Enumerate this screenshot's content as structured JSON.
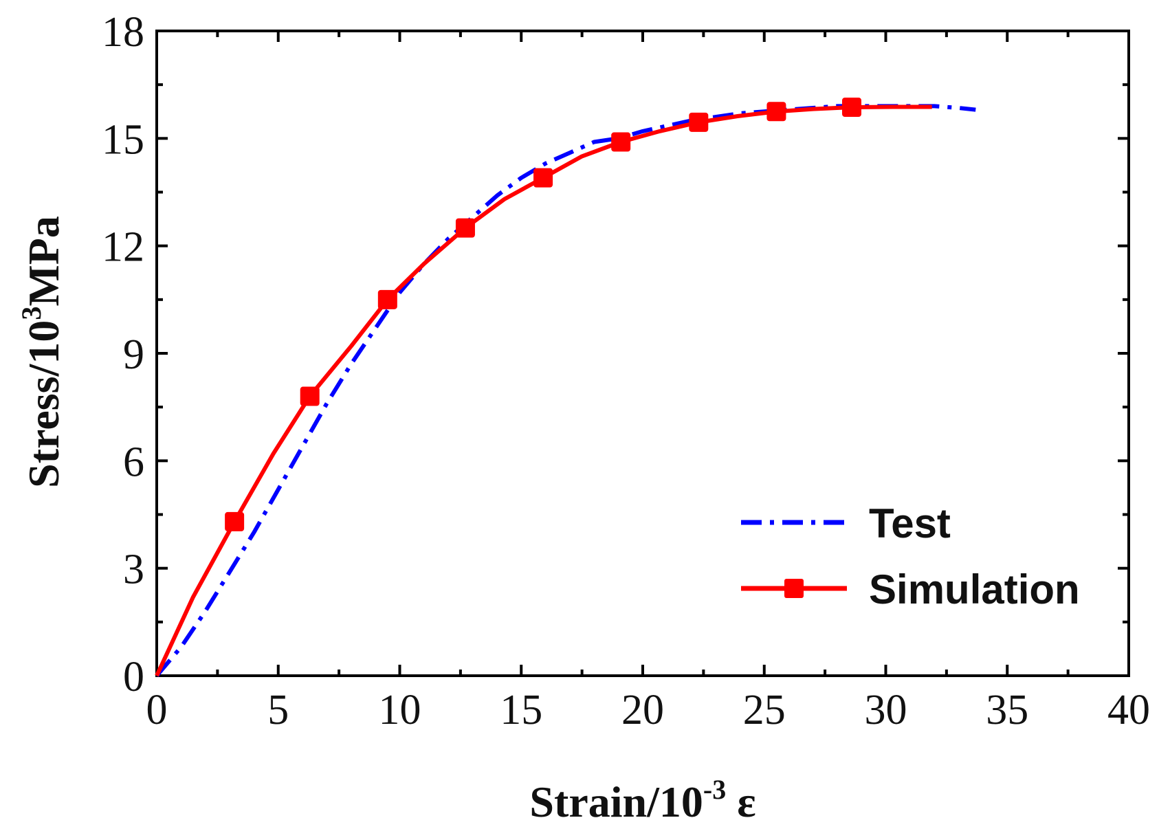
{
  "chart_data": {
    "type": "line",
    "title": "",
    "xlabel": {
      "main": "Strain/10",
      "sup": "-3",
      "unit": " ε"
    },
    "ylabel": {
      "main": "Stress/10",
      "sup": "3",
      "unit": "MPa"
    },
    "xlim": [
      0,
      40
    ],
    "ylim": [
      0,
      18
    ],
    "xticks": [
      0,
      5,
      10,
      15,
      20,
      25,
      30,
      35,
      40
    ],
    "yticks": [
      0,
      3,
      6,
      9,
      12,
      15,
      18
    ],
    "xticks_labels": [
      "0",
      "5",
      "10",
      "15",
      "20",
      "25",
      "30",
      "35",
      "40"
    ],
    "yticks_labels": [
      "0",
      "3",
      "6",
      "9",
      "12",
      "15",
      "18"
    ],
    "grid": false,
    "legend_position": "bottom-right",
    "series": [
      {
        "name": "Test",
        "color": "#0000ff",
        "style": "dash-dot",
        "x": [
          0,
          1,
          2,
          3,
          4,
          5,
          6,
          7,
          8,
          9,
          10,
          11,
          12,
          13,
          14,
          15,
          16,
          17,
          18,
          19,
          20,
          21,
          22,
          23,
          24,
          25,
          26,
          27,
          28,
          29,
          30,
          31,
          32,
          33,
          33.7
        ],
        "y": [
          0,
          0.8,
          1.8,
          2.9,
          4.0,
          5.2,
          6.4,
          7.6,
          8.7,
          9.7,
          10.7,
          11.5,
          12.2,
          12.8,
          13.4,
          13.9,
          14.3,
          14.6,
          14.9,
          15.0,
          15.2,
          15.35,
          15.5,
          15.6,
          15.7,
          15.75,
          15.8,
          15.85,
          15.9,
          15.9,
          15.9,
          15.9,
          15.9,
          15.85,
          15.8
        ]
      },
      {
        "name": "Simulation",
        "color": "#ff0000",
        "style": "solid",
        "marker": "square",
        "x": [
          0,
          1.5,
          3.2,
          4.8,
          6.3,
          8.0,
          9.5,
          11.0,
          12.7,
          14.3,
          15.9,
          17.5,
          19.1,
          20.7,
          22.3,
          23.9,
          25.5,
          27.0,
          28.6,
          30.3,
          31.9
        ],
        "y": [
          0,
          2.2,
          4.3,
          6.2,
          7.8,
          9.2,
          10.5,
          11.5,
          12.5,
          13.3,
          13.9,
          14.5,
          14.9,
          15.2,
          15.45,
          15.62,
          15.75,
          15.82,
          15.87,
          15.88,
          15.88
        ],
        "markers_x": [
          3.2,
          6.3,
          9.5,
          12.7,
          15.9,
          19.1,
          22.3,
          25.5,
          28.6
        ],
        "markers_y": [
          4.3,
          7.8,
          10.5,
          12.5,
          13.9,
          14.9,
          15.45,
          15.75,
          15.87
        ]
      }
    ]
  }
}
